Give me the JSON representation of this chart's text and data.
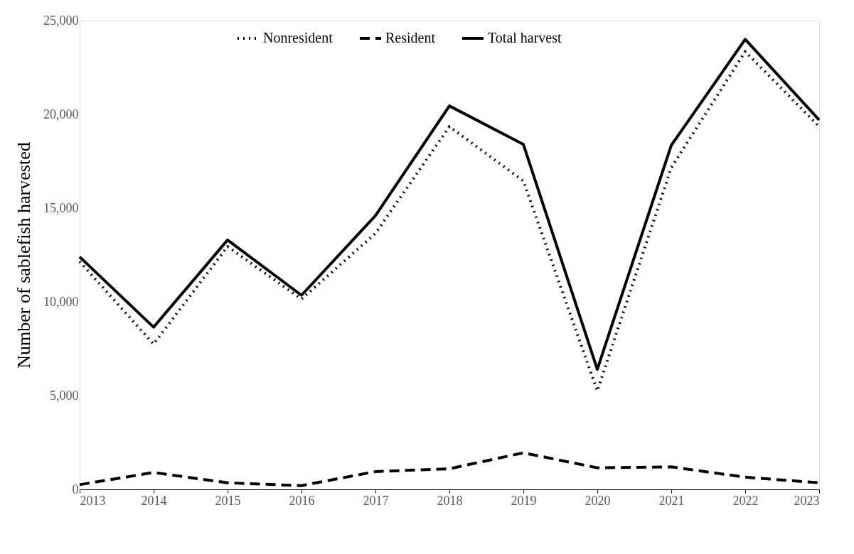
{
  "chart_data": {
    "type": "line",
    "ylabel": "Number of sablefish harvested",
    "categories": [
      "2013",
      "2014",
      "2015",
      "2016",
      "2017",
      "2018",
      "2019",
      "2020",
      "2021",
      "2022",
      "2023"
    ],
    "series": [
      {
        "name": "Nonresident",
        "color": "#000000",
        "line_style": "dotted",
        "values": [
          12150,
          7750,
          12950,
          10150,
          13650,
          19350,
          16450,
          5250,
          17150,
          23350,
          19350
        ]
      },
      {
        "name": "Resident",
        "color": "#000000",
        "line_style": "dashed",
        "values": [
          250,
          900,
          350,
          200,
          950,
          1100,
          1950,
          1150,
          1200,
          650,
          350
        ]
      },
      {
        "name": "Total harvest",
        "color": "#000000",
        "line_style": "solid",
        "values": [
          12400,
          8650,
          13300,
          10350,
          14600,
          20450,
          18400,
          6400,
          18350,
          24000,
          19700
        ]
      }
    ],
    "ylim": [
      0,
      25000
    ],
    "yticks": [
      0,
      {
        "value": 5000,
        "label": "5,000"
      },
      {
        "value": 10000,
        "label": "10,000"
      },
      {
        "value": 15000,
        "label": "15,000"
      },
      {
        "value": 20000,
        "label": "20,000"
      },
      {
        "value": 25000,
        "label": "25,000"
      }
    ],
    "grid": false,
    "legend": "top",
    "marker": "none"
  }
}
